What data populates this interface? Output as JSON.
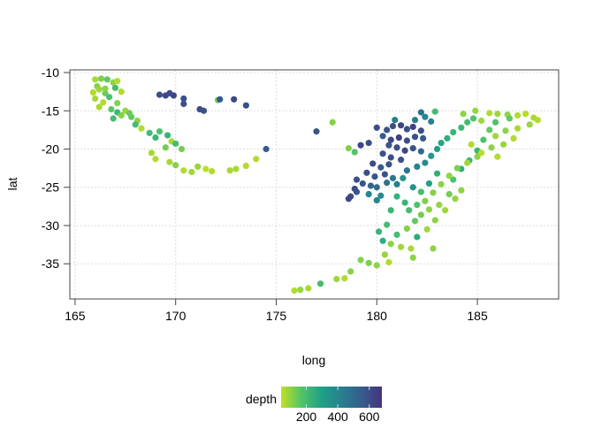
{
  "chart_data": {
    "type": "scatter",
    "title": "",
    "xlabel": "long",
    "ylabel": "lat",
    "xlim": [
      164.74,
      189.04
    ],
    "ylim": [
      -39.6,
      -9.65
    ],
    "xticks": [
      165,
      170,
      175,
      180,
      185
    ],
    "yticks": [
      -10,
      -15,
      -20,
      -25,
      -30,
      -35
    ],
    "grid": true,
    "color_by": "depth",
    "colorbar": {
      "title": "depth",
      "range": [
        40,
        680
      ],
      "ticks": [
        200,
        400,
        600
      ],
      "placement": "bottom"
    },
    "colors": [
      "#c2df23",
      "#52c569",
      "#1fa187",
      "#277f8e",
      "#365c8d",
      "#46337e"
    ],
    "points": [
      [
        166.0,
        -10.9,
        70
      ],
      [
        166.3,
        -10.8,
        120
      ],
      [
        166.6,
        -10.9,
        150
      ],
      [
        166.9,
        -11.3,
        100
      ],
      [
        167.1,
        -11.1,
        60
      ],
      [
        166.1,
        -11.8,
        110
      ],
      [
        165.9,
        -12.6,
        60
      ],
      [
        166.2,
        -12.2,
        80
      ],
      [
        166.5,
        -12.7,
        140
      ],
      [
        166.0,
        -13.4,
        70
      ],
      [
        166.4,
        -13.9,
        60
      ],
      [
        166.7,
        -13.2,
        180
      ],
      [
        167.0,
        -12.0,
        200
      ],
      [
        167.3,
        -12.5,
        60
      ],
      [
        166.2,
        -14.5,
        70
      ],
      [
        166.8,
        -14.8,
        160
      ],
      [
        167.1,
        -15.2,
        220
      ],
      [
        167.5,
        -15.0,
        90
      ],
      [
        166.9,
        -16.0,
        200
      ],
      [
        167.3,
        -15.6,
        110
      ],
      [
        167.8,
        -15.8,
        150
      ],
      [
        168.1,
        -16.3,
        100
      ],
      [
        168.3,
        -17.3,
        60
      ],
      [
        168.7,
        -17.9,
        200
      ],
      [
        169.0,
        -18.5,
        220
      ],
      [
        169.2,
        -17.7,
        180
      ],
      [
        169.6,
        -18.2,
        230
      ],
      [
        169.8,
        -19.0,
        70
      ],
      [
        169.5,
        -19.8,
        130
      ],
      [
        168.8,
        -20.5,
        70
      ],
      [
        169.0,
        -21.3,
        60
      ],
      [
        169.7,
        -21.7,
        70
      ],
      [
        170.0,
        -22.1,
        110
      ],
      [
        170.4,
        -22.8,
        60
      ],
      [
        170.8,
        -23.0,
        80
      ],
      [
        171.1,
        -22.3,
        90
      ],
      [
        171.5,
        -22.6,
        50
      ],
      [
        171.8,
        -22.9,
        60
      ],
      [
        172.7,
        -22.8,
        70
      ],
      [
        173.0,
        -22.6,
        70
      ],
      [
        173.5,
        -22.2,
        60
      ],
      [
        174.0,
        -21.3,
        60
      ],
      [
        170.0,
        -19.3,
        200
      ],
      [
        170.3,
        -20.0,
        130
      ],
      [
        166.5,
        -12.1,
        100
      ],
      [
        167.1,
        -14.0,
        110
      ],
      [
        167.7,
        -15.3,
        140
      ],
      [
        168.0,
        -16.8,
        200
      ],
      [
        169.2,
        -12.9,
        590
      ],
      [
        169.5,
        -13.0,
        620
      ],
      [
        169.7,
        -12.7,
        600
      ],
      [
        169.9,
        -13.0,
        610
      ],
      [
        170.4,
        -13.4,
        600
      ],
      [
        170.4,
        -14.1,
        590
      ],
      [
        171.2,
        -14.8,
        600
      ],
      [
        171.4,
        -15.0,
        580
      ],
      [
        172.1,
        -13.6,
        140
      ],
      [
        172.2,
        -13.5,
        560
      ],
      [
        172.9,
        -13.5,
        620
      ],
      [
        173.5,
        -14.3,
        590
      ],
      [
        174.5,
        -20.0,
        550
      ],
      [
        177.0,
        -17.7,
        570
      ],
      [
        177.8,
        -16.5,
        110
      ],
      [
        178.6,
        -19.9,
        120
      ],
      [
        178.9,
        -20.4,
        170
      ],
      [
        180.0,
        -17.2,
        600
      ],
      [
        180.5,
        -17.5,
        580
      ],
      [
        180.8,
        -17.0,
        600
      ],
      [
        181.2,
        -16.9,
        620
      ],
      [
        181.5,
        -17.4,
        590
      ],
      [
        181.8,
        -17.1,
        640
      ],
      [
        182.2,
        -17.6,
        600
      ],
      [
        180.3,
        -18.3,
        560
      ],
      [
        180.7,
        -18.8,
        620
      ],
      [
        181.1,
        -18.5,
        640
      ],
      [
        181.5,
        -18.9,
        600
      ],
      [
        181.9,
        -18.4,
        590
      ],
      [
        182.3,
        -18.6,
        560
      ],
      [
        180.6,
        -19.5,
        580
      ],
      [
        181.0,
        -19.8,
        600
      ],
      [
        181.4,
        -20.2,
        620
      ],
      [
        181.8,
        -19.9,
        580
      ],
      [
        182.2,
        -20.3,
        500
      ],
      [
        180.3,
        -20.6,
        590
      ],
      [
        180.7,
        -21.1,
        600
      ],
      [
        181.2,
        -21.4,
        580
      ],
      [
        179.8,
        -21.9,
        600
      ],
      [
        180.2,
        -22.4,
        560
      ],
      [
        180.6,
        -22.0,
        580
      ],
      [
        179.5,
        -23.1,
        600
      ],
      [
        179.9,
        -23.6,
        570
      ],
      [
        180.4,
        -23.3,
        580
      ],
      [
        179.0,
        -24.0,
        590
      ],
      [
        179.3,
        -24.5,
        570
      ],
      [
        179.7,
        -24.8,
        520
      ],
      [
        180.0,
        -25.0,
        490
      ],
      [
        180.5,
        -24.4,
        480
      ],
      [
        180.8,
        -23.8,
        450
      ],
      [
        179.0,
        -25.6,
        560
      ],
      [
        178.7,
        -26.2,
        600
      ],
      [
        178.6,
        -26.5,
        620
      ],
      [
        178.9,
        -25.2,
        600
      ],
      [
        179.6,
        -25.9,
        400
      ],
      [
        180.2,
        -26.1,
        380
      ],
      [
        180.0,
        -26.7,
        400
      ],
      [
        181.0,
        -24.6,
        420
      ],
      [
        181.3,
        -23.8,
        350
      ],
      [
        181.5,
        -22.8,
        450
      ],
      [
        182.0,
        -22.3,
        400
      ],
      [
        182.4,
        -21.8,
        380
      ],
      [
        182.7,
        -20.9,
        330
      ],
      [
        183.0,
        -20.0,
        300
      ],
      [
        183.2,
        -19.2,
        280
      ],
      [
        183.5,
        -18.6,
        250
      ],
      [
        183.8,
        -17.8,
        230
      ],
      [
        184.2,
        -17.2,
        220
      ],
      [
        184.5,
        -16.5,
        200
      ],
      [
        184.8,
        -16.0,
        180
      ],
      [
        184.3,
        -15.4,
        100
      ],
      [
        182.7,
        -16.4,
        420
      ],
      [
        182.4,
        -15.8,
        400
      ],
      [
        181.9,
        -16.2,
        420
      ],
      [
        182.2,
        -15.2,
        470
      ],
      [
        180.9,
        -16.2,
        420
      ],
      [
        179.6,
        -19.2,
        600
      ],
      [
        179.2,
        -19.5,
        620
      ],
      [
        183.0,
        -23.2,
        250
      ],
      [
        182.6,
        -24.5,
        300
      ],
      [
        182.2,
        -25.6,
        200
      ],
      [
        181.8,
        -25.0,
        350
      ],
      [
        183.8,
        -24.0,
        180
      ],
      [
        184.2,
        -22.6,
        250
      ],
      [
        184.6,
        -21.5,
        230
      ],
      [
        185.0,
        -20.2,
        220
      ],
      [
        185.3,
        -18.8,
        180
      ],
      [
        185.6,
        -17.5,
        150
      ],
      [
        185.2,
        -16.3,
        80
      ],
      [
        185.6,
        -15.3,
        60
      ],
      [
        186.0,
        -15.4,
        80
      ],
      [
        186.5,
        -15.5,
        100
      ],
      [
        187.0,
        -15.6,
        60
      ],
      [
        187.4,
        -15.4,
        50
      ],
      [
        187.8,
        -15.9,
        70
      ],
      [
        188.0,
        -16.2,
        60
      ],
      [
        187.6,
        -16.8,
        90
      ],
      [
        187.0,
        -17.3,
        70
      ],
      [
        186.4,
        -17.6,
        100
      ],
      [
        185.9,
        -18.3,
        80
      ],
      [
        186.8,
        -18.6,
        60
      ],
      [
        186.3,
        -19.4,
        90
      ],
      [
        185.7,
        -19.8,
        100
      ],
      [
        185.0,
        -21.0,
        100
      ],
      [
        184.5,
        -21.8,
        80
      ],
      [
        184.0,
        -22.5,
        120
      ],
      [
        183.6,
        -23.5,
        90
      ],
      [
        183.2,
        -24.6,
        100
      ],
      [
        182.8,
        -25.7,
        110
      ],
      [
        182.4,
        -26.8,
        120
      ],
      [
        183.1,
        -27.3,
        90
      ],
      [
        182.6,
        -27.9,
        100
      ],
      [
        182.2,
        -28.6,
        130
      ],
      [
        181.9,
        -29.4,
        150
      ],
      [
        181.5,
        -30.4,
        110
      ],
      [
        181.0,
        -31.2,
        200
      ],
      [
        180.7,
        -32.4,
        100
      ],
      [
        181.2,
        -32.8,
        80
      ],
      [
        181.7,
        -33.0,
        70
      ],
      [
        180.4,
        -33.8,
        90
      ],
      [
        180.6,
        -34.8,
        60
      ],
      [
        181.8,
        -34.2,
        100
      ],
      [
        180.0,
        -35.2,
        100
      ],
      [
        179.6,
        -34.9,
        120
      ],
      [
        178.7,
        -36.0,
        110
      ],
      [
        178.0,
        -37.0,
        80
      ],
      [
        177.2,
        -37.6,
        200
      ],
      [
        176.6,
        -38.2,
        70
      ],
      [
        175.9,
        -38.5,
        60
      ],
      [
        176.2,
        -38.4,
        90
      ],
      [
        178.4,
        -36.9,
        60
      ],
      [
        179.2,
        -34.5,
        110
      ],
      [
        180.1,
        -30.8,
        230
      ],
      [
        180.5,
        -29.9,
        200
      ],
      [
        180.7,
        -28.0,
        220
      ],
      [
        181.6,
        -28.0,
        200
      ],
      [
        182.0,
        -27.3,
        180
      ],
      [
        183.6,
        -25.9,
        130
      ],
      [
        183.9,
        -26.5,
        90
      ],
      [
        184.2,
        -25.4,
        100
      ],
      [
        183.4,
        -28.0,
        80
      ],
      [
        182.9,
        -29.3,
        100
      ],
      [
        182.5,
        -30.5,
        80
      ],
      [
        182.8,
        -33.0,
        100
      ],
      [
        184.7,
        -19.4,
        60
      ],
      [
        185.2,
        -20.5,
        50
      ],
      [
        186.0,
        -21.0,
        60
      ],
      [
        184.9,
        -15.0,
        90
      ],
      [
        185.9,
        -16.5,
        180
      ],
      [
        186.6,
        -16.0,
        150
      ],
      [
        182.9,
        -15.1,
        200
      ],
      [
        181.0,
        -26.2,
        240
      ],
      [
        181.4,
        -27.0,
        230
      ],
      [
        182.0,
        -31.5,
        260
      ],
      [
        180.3,
        -32.0,
        250
      ]
    ]
  }
}
